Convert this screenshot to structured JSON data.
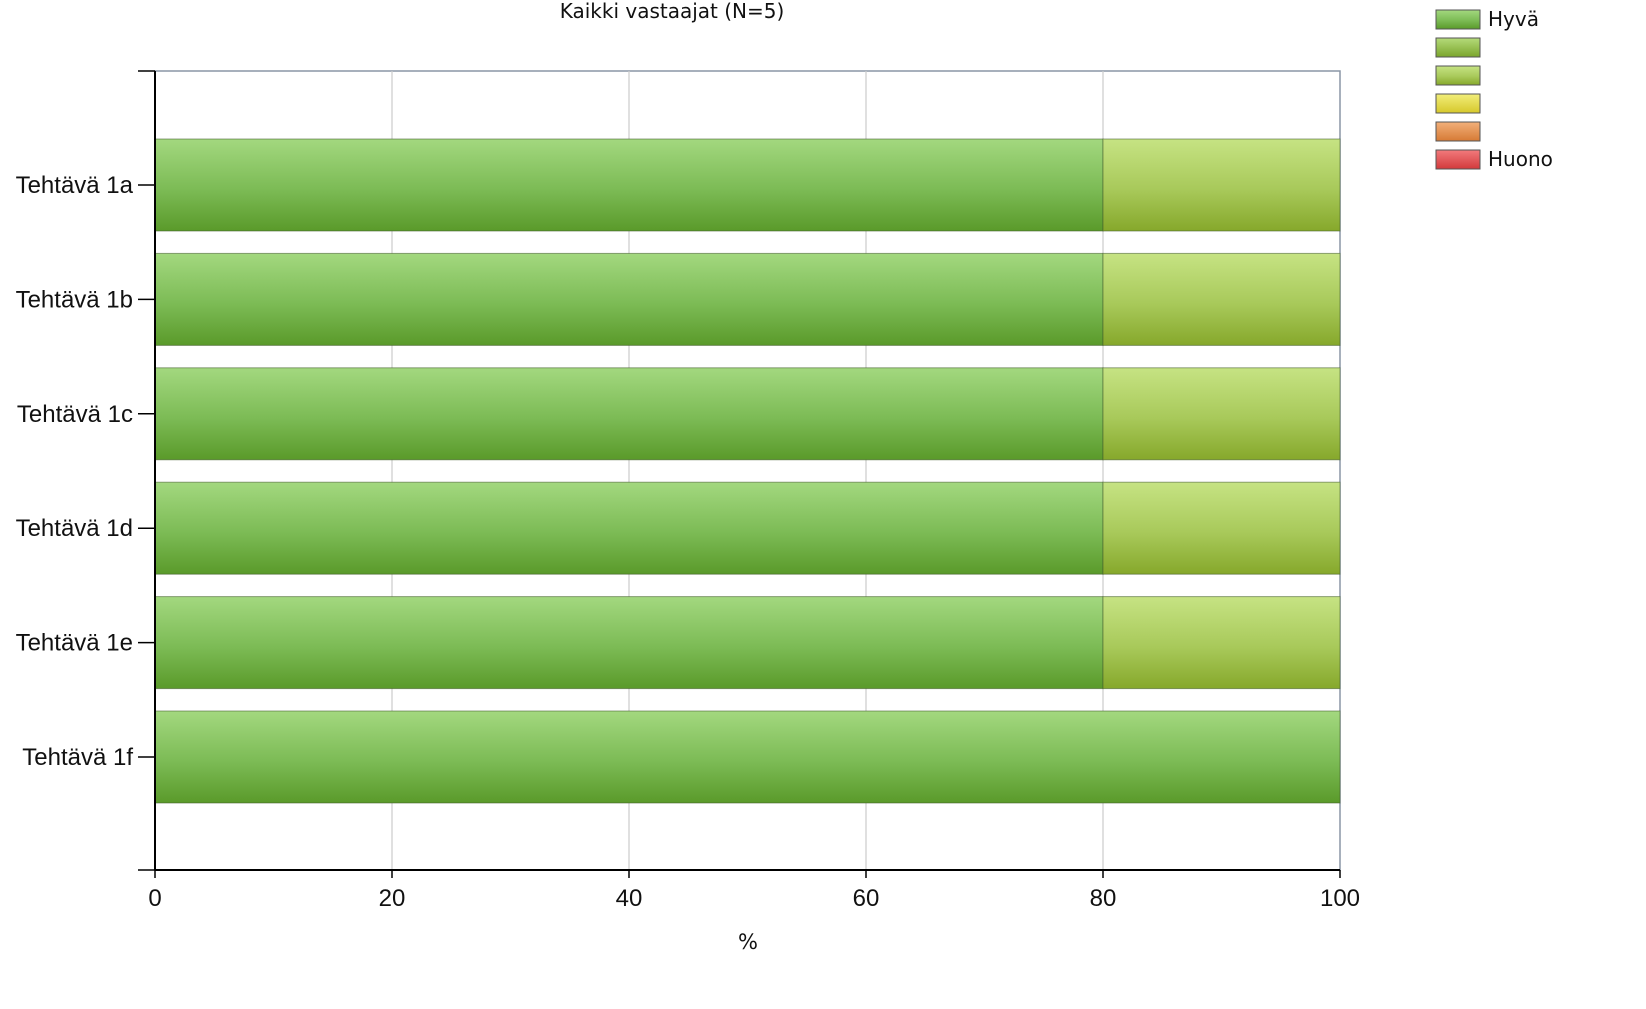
{
  "chart_data": {
    "type": "bar",
    "orientation": "horizontal",
    "stacked": true,
    "title": "Kaikki vastaajat (N=5)",
    "xlabel": "%",
    "ylabel": "",
    "xlim": [
      0,
      100
    ],
    "x_ticks": [
      "0",
      "20",
      "40",
      "60",
      "80",
      "100"
    ],
    "grid": true,
    "legend_position": "top-right",
    "categories": [
      "Tehtävä 1a",
      "Tehtävä 1b",
      "Tehtävä 1c",
      "Tehtävä 1d",
      "Tehtävä 1e",
      "Tehtävä 1f"
    ],
    "series": [
      {
        "name": "Hyvä",
        "color": "#6aaf3f",
        "values": [
          80,
          80,
          80,
          80,
          80,
          100
        ]
      },
      {
        "name": "",
        "color": "#8fbd3e",
        "values": [
          0,
          0,
          0,
          0,
          0,
          0
        ]
      },
      {
        "name": "",
        "color": "#a6c43a",
        "values": [
          20,
          20,
          20,
          20,
          20,
          0
        ]
      },
      {
        "name": "",
        "color": "#e3dc3a",
        "values": [
          0,
          0,
          0,
          0,
          0,
          0
        ]
      },
      {
        "name": "",
        "color": "#e38c45",
        "values": [
          0,
          0,
          0,
          0,
          0,
          0
        ]
      },
      {
        "name": "Huono",
        "color": "#e2474a",
        "values": [
          0,
          0,
          0,
          0,
          0,
          0
        ]
      }
    ]
  }
}
